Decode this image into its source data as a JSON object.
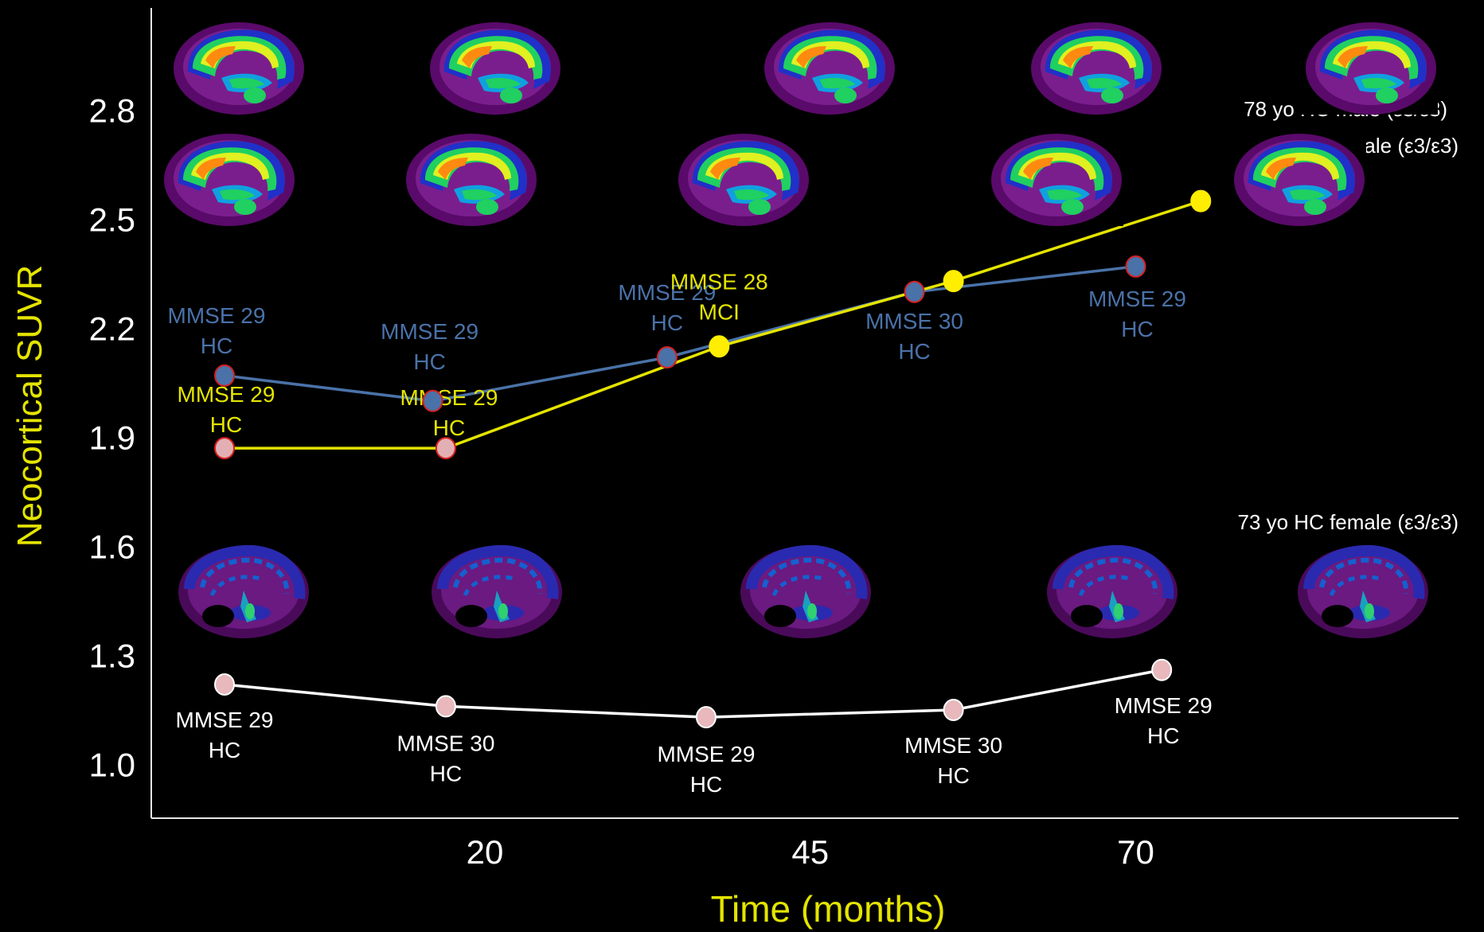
{
  "chart_data": {
    "type": "line",
    "xlabel": "Time (months)",
    "ylabel": "Neocortical SUVR",
    "x_ticks": [
      20,
      45,
      70
    ],
    "y_ticks": [
      "1.0",
      "1.3",
      "1.6",
      "1.9",
      "2.2",
      "2.5",
      "2.8"
    ],
    "xlim": [
      -5,
      80
    ],
    "ylim": [
      0.85,
      3.1
    ],
    "legend": "none",
    "colors": {
      "male": "#4a72a8",
      "female": "#e4e400",
      "white": "#ffffff",
      "axis_label": "#e4e400",
      "marker_fill": "#e2b0b4",
      "marker_edge": "#d62020"
    },
    "series": [
      {
        "key": "male",
        "color": "#4a72a8",
        "points": [
          {
            "x": 0,
            "y": 2.07,
            "label": [
              "MMSE 29",
              "HC"
            ]
          },
          {
            "x": 16,
            "y": 2.0,
            "label": [
              "MMSE 29",
              "HC"
            ]
          },
          {
            "x": 34,
            "y": 2.12,
            "label": [
              "MMSE 29",
              "HC"
            ]
          },
          {
            "x": 53,
            "y": 2.3,
            "label": [
              "MMSE 30",
              "HC"
            ]
          },
          {
            "x": 70,
            "y": 2.37,
            "label": [
              "MMSE 29",
              "HC"
            ]
          }
        ]
      },
      {
        "key": "female",
        "color": "#e4e400",
        "points": [
          {
            "x": 0,
            "y": 1.87,
            "label": [
              "MMSE 29",
              "HC"
            ]
          },
          {
            "x": 17,
            "y": 1.87,
            "label": [
              "MMSE 29",
              "HC"
            ]
          },
          {
            "x": 38,
            "y": 2.15,
            "label": [
              "MMSE 28",
              "MCI"
            ]
          },
          {
            "x": 56,
            "y": 2.33,
            "label": []
          },
          {
            "x": 75,
            "y": 2.55,
            "label": []
          }
        ]
      },
      {
        "key": "white",
        "color": "#ffffff",
        "points": [
          {
            "x": 0,
            "y": 1.22,
            "label": [
              "MMSE 29",
              "HC"
            ]
          },
          {
            "x": 17,
            "y": 1.16,
            "label": [
              "MMSE 30",
              "HC"
            ]
          },
          {
            "x": 37,
            "y": 1.13,
            "label": [
              "MMSE 29",
              "HC"
            ]
          },
          {
            "x": 56,
            "y": 1.15,
            "label": [
              "MMSE 30",
              "HC"
            ]
          },
          {
            "x": 72,
            "y": 1.26,
            "label": [
              "MMSE 29",
              "HC"
            ]
          }
        ]
      }
    ],
    "annotations": [
      {
        "key": "ann1",
        "text": "78 yo HC male (ε3/ε3)"
      },
      {
        "key": "ann2",
        "text": "74 yo HC female (ε3/ε3)"
      },
      {
        "key": "ann3",
        "text": "73 yo HC female (ε3/ε3)"
      }
    ]
  }
}
